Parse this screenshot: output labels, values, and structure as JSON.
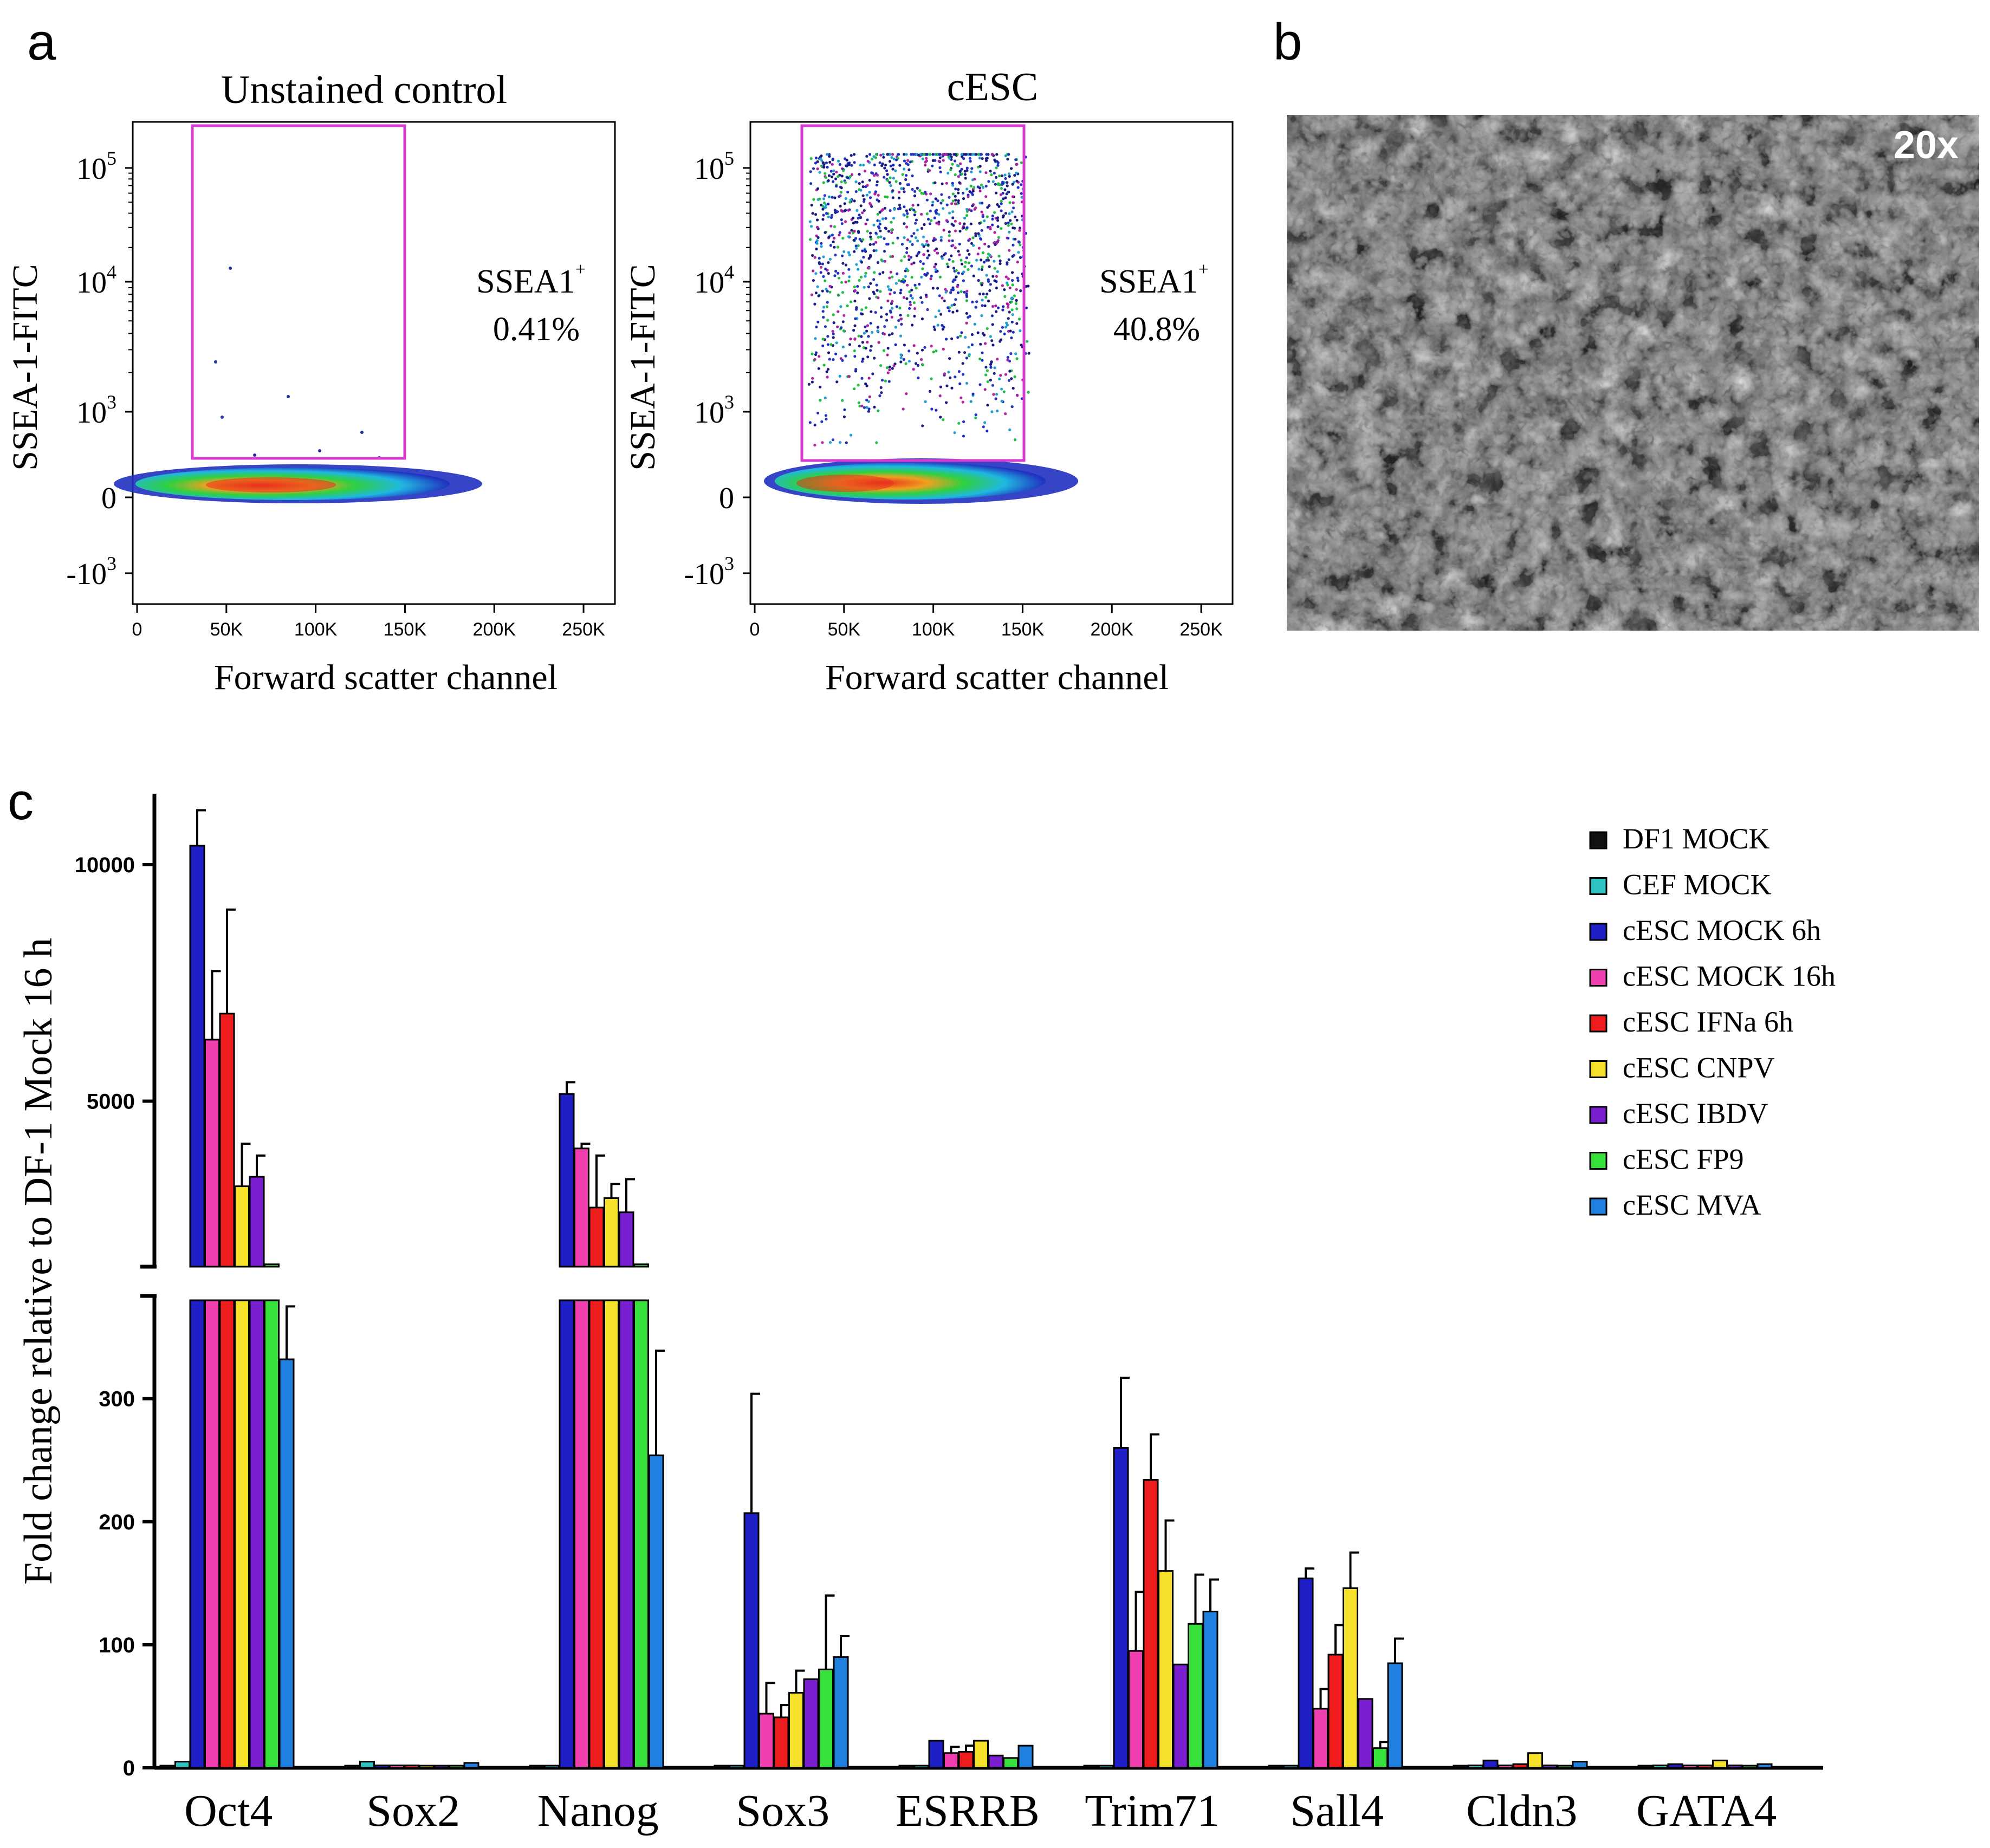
{
  "panel_a": {
    "letter": "a",
    "plots": [
      {
        "title": "Unstained control",
        "ylabel": "SSEA-1-FITC",
        "xlabel": "Forward scatter channel",
        "gate_label": "SSEA1",
        "gate_sup": "+",
        "gate_percent": "0.41%"
      },
      {
        "title": "cESC",
        "ylabel": "SSEA-1-FITC",
        "xlabel": "Forward scatter channel",
        "gate_label": "SSEA1",
        "gate_sup": "+",
        "gate_percent": "40.8%"
      }
    ],
    "x_ticks": [
      "0",
      "50K",
      "100K",
      "150K",
      "200K",
      "250K"
    ],
    "y_ticks": [
      {
        "base": "10",
        "exp": "5"
      },
      {
        "base": "10",
        "exp": "4"
      },
      {
        "base": "10",
        "exp": "3"
      },
      {
        "base": "0",
        "exp": ""
      },
      {
        "base": "-10",
        "exp": "3"
      }
    ]
  },
  "panel_b": {
    "letter": "b",
    "magnification": "20x"
  },
  "panel_c": {
    "letter": "c"
  },
  "colors": {
    "DF1 MOCK": "#111111",
    "CEF MOCK": "#2ec4c4",
    "cESC MOCK 6h": "#1f1fc8",
    "cESC MOCK 16h": "#f040b0",
    "cESC IFNa 6h": "#ee1c1c",
    "cESC CNPV": "#f5e12a",
    "cESC IBDV": "#7a1fd0",
    "cESC FP9": "#37e03a",
    "cESC MVA": "#2080e0",
    "gate": "#d83ad0"
  },
  "chart_data": {
    "type": "bar",
    "title": "",
    "ylabel": "Fold change relative to DF-1 Mock 16 h",
    "xlabel": "",
    "y_axis_break": {
      "lower_range": [
        0,
        380
      ],
      "upper_range": [
        1500,
        11500
      ]
    },
    "yticks_lower": [
      "0",
      "100",
      "200",
      "300"
    ],
    "yticks_upper": [
      "5000",
      "10000"
    ],
    "categories": [
      "Oct4",
      "Sox2",
      "Nanog",
      "Sox3",
      "ESRRB",
      "Trim71",
      "Sall4",
      "Cldn3",
      "GATA4"
    ],
    "series": [
      {
        "name": "DF1 MOCK",
        "values": [
          1,
          1,
          1,
          1,
          1,
          1,
          1,
          1,
          1
        ],
        "errors": [
          0,
          0,
          0,
          0,
          0,
          0,
          0,
          0,
          0
        ]
      },
      {
        "name": "CEF MOCK",
        "values": [
          5,
          5,
          1,
          1,
          1,
          1,
          1,
          2,
          2
        ],
        "errors": [
          0,
          0,
          0,
          0,
          0,
          0,
          0,
          0,
          0
        ]
      },
      {
        "name": "cESC MOCK 6h",
        "values": [
          10400,
          2,
          5150,
          207,
          22,
          260,
          154,
          6,
          3
        ],
        "errors": [
          750,
          0,
          250,
          97,
          0,
          57,
          8,
          0,
          0
        ]
      },
      {
        "name": "cESC MOCK 16h",
        "values": [
          6300,
          2,
          4000,
          44,
          12,
          95,
          48,
          2,
          2
        ],
        "errors": [
          1450,
          0,
          100,
          25,
          5,
          48,
          16,
          0,
          0
        ]
      },
      {
        "name": "cESC IFNa 6h",
        "values": [
          6850,
          2,
          2750,
          41,
          13,
          234,
          92,
          3,
          2
        ],
        "errors": [
          2200,
          0,
          1100,
          10,
          5,
          37,
          24,
          0,
          0
        ]
      },
      {
        "name": "cESC CNPV",
        "values": [
          3200,
          1,
          2950,
          61,
          22,
          160,
          146,
          12,
          6
        ],
        "errors": [
          900,
          0,
          300,
          18,
          0,
          41,
          29,
          0,
          0
        ]
      },
      {
        "name": "cESC IBDV",
        "values": [
          3400,
          1,
          2650,
          72,
          10,
          84,
          56,
          2,
          2
        ],
        "errors": [
          450,
          0,
          700,
          0,
          0,
          0,
          0,
          0,
          0
        ]
      },
      {
        "name": "cESC FP9",
        "values": [
          1550,
          1,
          1550,
          80,
          8,
          117,
          16,
          1,
          1
        ],
        "errors": [
          0,
          0,
          0,
          60,
          0,
          40,
          5,
          0,
          0
        ]
      },
      {
        "name": "cESC MVA",
        "values": [
          332,
          4,
          254,
          90,
          18,
          127,
          85,
          5,
          3
        ],
        "errors": [
          43,
          0,
          85,
          17,
          0,
          26,
          20,
          0,
          0
        ]
      }
    ]
  }
}
